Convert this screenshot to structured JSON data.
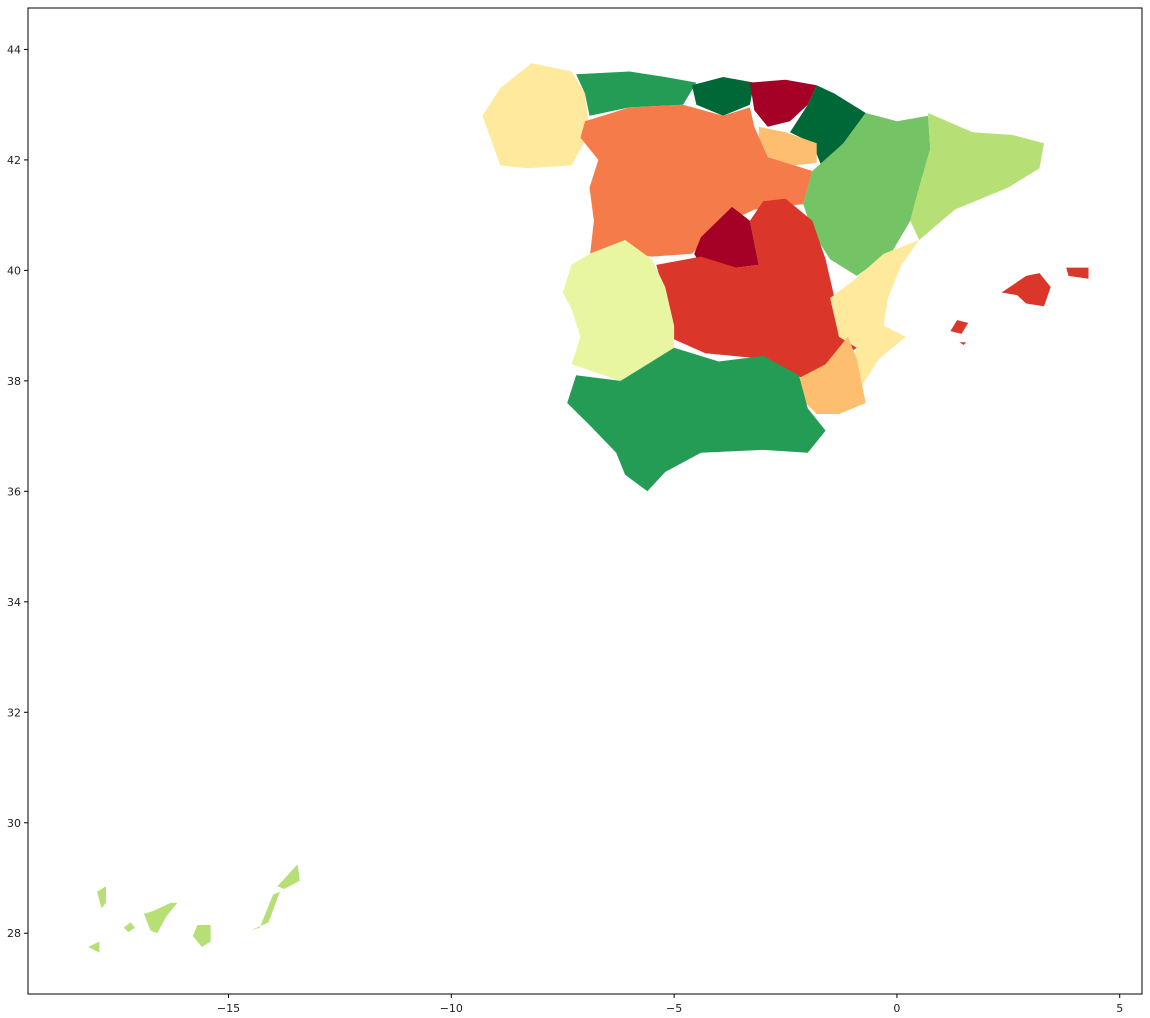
{
  "chart_data": {
    "type": "choropleth",
    "title": "",
    "xlabel": "",
    "ylabel": "",
    "xlim": [
      -19.5,
      5.5
    ],
    "ylim": [
      26.9,
      44.75
    ],
    "x_ticks": [
      -15,
      -10,
      -5,
      0,
      5
    ],
    "y_ticks": [
      28,
      30,
      32,
      34,
      36,
      38,
      40,
      42,
      44
    ],
    "x_tick_labels": [
      "−15",
      "−10",
      "−5",
      "0",
      "5"
    ],
    "y_tick_labels": [
      "28",
      "30",
      "32",
      "34",
      "36",
      "38",
      "40",
      "42",
      "44"
    ],
    "colormap": "RdYlGn",
    "grid": false,
    "legend": "none",
    "regions": [
      {
        "id": "galicia",
        "color": "#fee99d",
        "outline": [
          [
            -8.9,
            43.3
          ],
          [
            -8.2,
            43.75
          ],
          [
            -7.3,
            43.6
          ],
          [
            -7.0,
            43.2
          ],
          [
            -6.9,
            42.5
          ],
          [
            -7.3,
            41.9
          ],
          [
            -8.3,
            41.85
          ],
          [
            -8.9,
            41.9
          ],
          [
            -9.3,
            42.8
          ]
        ]
      },
      {
        "id": "asturias",
        "color": "#249c55",
        "outline": [
          [
            -7.2,
            43.55
          ],
          [
            -6.0,
            43.6
          ],
          [
            -5.2,
            43.5
          ],
          [
            -4.5,
            43.4
          ],
          [
            -4.8,
            43.0
          ],
          [
            -6.0,
            42.95
          ],
          [
            -6.9,
            42.8
          ],
          [
            -7.0,
            43.2
          ]
        ]
      },
      {
        "id": "cantabria",
        "color": "#006837",
        "outline": [
          [
            -4.6,
            43.35
          ],
          [
            -3.9,
            43.5
          ],
          [
            -3.2,
            43.4
          ],
          [
            -3.3,
            43.0
          ],
          [
            -3.9,
            42.8
          ],
          [
            -4.5,
            43.0
          ]
        ]
      },
      {
        "id": "basque-country",
        "color": "#a50026",
        "outline": [
          [
            -3.3,
            43.4
          ],
          [
            -2.5,
            43.45
          ],
          [
            -1.8,
            43.35
          ],
          [
            -2.0,
            43.0
          ],
          [
            -2.4,
            42.7
          ],
          [
            -2.9,
            42.6
          ],
          [
            -3.2,
            42.9
          ]
        ]
      },
      {
        "id": "navarre",
        "color": "#006837",
        "outline": [
          [
            -1.8,
            43.35
          ],
          [
            -1.4,
            43.2
          ],
          [
            -0.7,
            42.85
          ],
          [
            -1.2,
            42.3
          ],
          [
            -1.7,
            41.9
          ],
          [
            -1.9,
            42.3
          ],
          [
            -2.4,
            42.5
          ],
          [
            -2.0,
            43.0
          ]
        ]
      },
      {
        "id": "la-rioja",
        "color": "#fdbf6f",
        "outline": [
          [
            -3.1,
            42.6
          ],
          [
            -2.5,
            42.5
          ],
          [
            -1.8,
            42.3
          ],
          [
            -1.8,
            41.95
          ],
          [
            -2.3,
            41.9
          ],
          [
            -2.9,
            42.05
          ],
          [
            -3.1,
            42.3
          ]
        ]
      },
      {
        "id": "castile-and-leon",
        "color": "#f67b4a",
        "outline": [
          [
            -7.0,
            42.7
          ],
          [
            -6.0,
            42.95
          ],
          [
            -4.8,
            43.0
          ],
          [
            -3.9,
            42.8
          ],
          [
            -3.3,
            42.95
          ],
          [
            -3.2,
            42.6
          ],
          [
            -2.9,
            42.05
          ],
          [
            -2.3,
            41.9
          ],
          [
            -1.9,
            41.8
          ],
          [
            -2.1,
            41.2
          ],
          [
            -3.2,
            41.1
          ],
          [
            -4.0,
            40.8
          ],
          [
            -4.6,
            40.3
          ],
          [
            -5.5,
            40.25
          ],
          [
            -6.4,
            40.3
          ],
          [
            -6.9,
            40.2
          ],
          [
            -6.8,
            40.9
          ],
          [
            -6.9,
            41.5
          ],
          [
            -6.7,
            42.0
          ],
          [
            -7.1,
            42.4
          ]
        ]
      },
      {
        "id": "aragon",
        "color": "#74c365",
        "outline": [
          [
            -0.7,
            42.85
          ],
          [
            0.0,
            42.7
          ],
          [
            0.7,
            42.8
          ],
          [
            0.75,
            42.2
          ],
          [
            0.5,
            41.5
          ],
          [
            0.3,
            40.9
          ],
          [
            -0.1,
            40.35
          ],
          [
            -0.9,
            39.9
          ],
          [
            -1.5,
            40.2
          ],
          [
            -1.9,
            40.7
          ],
          [
            -2.1,
            41.2
          ],
          [
            -1.9,
            41.8
          ],
          [
            -1.2,
            42.3
          ]
        ]
      },
      {
        "id": "catalonia",
        "color": "#b6e076",
        "outline": [
          [
            0.7,
            42.85
          ],
          [
            1.7,
            42.5
          ],
          [
            2.6,
            42.45
          ],
          [
            3.3,
            42.3
          ],
          [
            3.2,
            41.85
          ],
          [
            2.5,
            41.5
          ],
          [
            1.3,
            41.1
          ],
          [
            0.5,
            40.55
          ],
          [
            0.3,
            40.9
          ],
          [
            0.5,
            41.5
          ],
          [
            0.75,
            42.2
          ]
        ]
      },
      {
        "id": "madrid",
        "color": "#a50026",
        "outline": [
          [
            -4.4,
            40.6
          ],
          [
            -3.7,
            41.15
          ],
          [
            -3.3,
            40.9
          ],
          [
            -3.1,
            40.1
          ],
          [
            -3.6,
            40.05
          ],
          [
            -4.3,
            39.95
          ],
          [
            -4.55,
            40.3
          ]
        ]
      },
      {
        "id": "castilla-la-mancha",
        "color": "#da362a",
        "outline": [
          [
            -5.4,
            40.1
          ],
          [
            -4.4,
            40.25
          ],
          [
            -3.6,
            40.05
          ],
          [
            -3.1,
            40.1
          ],
          [
            -3.3,
            40.9
          ],
          [
            -3.0,
            41.25
          ],
          [
            -2.5,
            41.3
          ],
          [
            -1.9,
            40.9
          ],
          [
            -1.6,
            40.2
          ],
          [
            -1.4,
            39.5
          ],
          [
            -1.3,
            38.8
          ],
          [
            -0.9,
            38.6
          ],
          [
            -1.6,
            38.2
          ],
          [
            -2.0,
            38.0
          ],
          [
            -3.0,
            38.4
          ],
          [
            -4.3,
            38.5
          ],
          [
            -5.0,
            38.75
          ],
          [
            -5.2,
            39.4
          ],
          [
            -5.3,
            39.8
          ]
        ]
      },
      {
        "id": "extremadura",
        "color": "#e9f6a1",
        "outline": [
          [
            -7.5,
            39.6
          ],
          [
            -7.3,
            40.1
          ],
          [
            -6.9,
            40.3
          ],
          [
            -6.1,
            40.55
          ],
          [
            -5.5,
            40.2
          ],
          [
            -5.2,
            39.7
          ],
          [
            -5.0,
            39.0
          ],
          [
            -5.0,
            38.5
          ],
          [
            -6.2,
            38.0
          ],
          [
            -7.3,
            38.3
          ],
          [
            -7.1,
            38.8
          ],
          [
            -7.3,
            39.3
          ]
        ]
      },
      {
        "id": "valencia",
        "color": "#fee99d",
        "outline": [
          [
            0.5,
            40.55
          ],
          [
            0.1,
            40.1
          ],
          [
            -0.2,
            39.5
          ],
          [
            -0.3,
            39.0
          ],
          [
            0.2,
            38.8
          ],
          [
            -0.4,
            38.4
          ],
          [
            -0.8,
            37.9
          ],
          [
            -1.1,
            38.1
          ],
          [
            -0.9,
            38.6
          ],
          [
            -1.3,
            38.8
          ],
          [
            -1.5,
            39.5
          ],
          [
            -1.0,
            39.8
          ],
          [
            -0.3,
            40.3
          ]
        ]
      },
      {
        "id": "murcia",
        "color": "#fdbf6f",
        "outline": [
          [
            -2.2,
            38.05
          ],
          [
            -1.6,
            38.3
          ],
          [
            -1.1,
            38.8
          ],
          [
            -0.9,
            38.4
          ],
          [
            -0.7,
            37.6
          ],
          [
            -1.3,
            37.4
          ],
          [
            -1.8,
            37.4
          ],
          [
            -2.3,
            37.8
          ]
        ]
      },
      {
        "id": "andalusia",
        "color": "#249c55",
        "outline": [
          [
            -7.4,
            37.6
          ],
          [
            -7.2,
            38.1
          ],
          [
            -6.2,
            38.0
          ],
          [
            -5.0,
            38.6
          ],
          [
            -4.0,
            38.35
          ],
          [
            -3.0,
            38.45
          ],
          [
            -2.2,
            38.1
          ],
          [
            -2.0,
            37.5
          ],
          [
            -1.6,
            37.1
          ],
          [
            -2.0,
            36.7
          ],
          [
            -3.0,
            36.75
          ],
          [
            -4.4,
            36.7
          ],
          [
            -5.2,
            36.35
          ],
          [
            -5.6,
            36.0
          ],
          [
            -6.1,
            36.3
          ],
          [
            -6.3,
            36.7
          ],
          [
            -6.9,
            37.2
          ]
        ]
      },
      {
        "id": "mallorca",
        "color": "#da362a",
        "outline": [
          [
            2.35,
            39.6
          ],
          [
            2.9,
            39.9
          ],
          [
            3.2,
            39.95
          ],
          [
            3.45,
            39.7
          ],
          [
            3.3,
            39.35
          ],
          [
            2.9,
            39.4
          ],
          [
            2.7,
            39.55
          ]
        ]
      },
      {
        "id": "menorca",
        "color": "#da362a",
        "outline": [
          [
            3.8,
            40.05
          ],
          [
            4.3,
            40.05
          ],
          [
            4.3,
            39.85
          ],
          [
            3.85,
            39.9
          ]
        ]
      },
      {
        "id": "ibiza",
        "color": "#da362a",
        "outline": [
          [
            1.2,
            38.9
          ],
          [
            1.35,
            39.1
          ],
          [
            1.6,
            39.05
          ],
          [
            1.45,
            38.85
          ]
        ]
      },
      {
        "id": "formentera",
        "color": "#da362a",
        "outline": [
          [
            1.4,
            38.7
          ],
          [
            1.55,
            38.7
          ],
          [
            1.5,
            38.65
          ]
        ]
      },
      {
        "id": "lanzarote",
        "color": "#b6e076",
        "outline": [
          [
            -13.9,
            28.85
          ],
          [
            -13.45,
            29.25
          ],
          [
            -13.4,
            28.95
          ],
          [
            -13.75,
            28.8
          ]
        ]
      },
      {
        "id": "fuerteventura",
        "color": "#b6e076",
        "outline": [
          [
            -14.5,
            28.05
          ],
          [
            -14.1,
            28.2
          ],
          [
            -13.85,
            28.75
          ],
          [
            -14.0,
            28.7
          ],
          [
            -14.3,
            28.1
          ]
        ]
      },
      {
        "id": "gran-canaria",
        "color": "#b6e076",
        "outline": [
          [
            -15.8,
            27.95
          ],
          [
            -15.7,
            28.15
          ],
          [
            -15.4,
            28.15
          ],
          [
            -15.4,
            27.85
          ],
          [
            -15.6,
            27.75
          ]
        ]
      },
      {
        "id": "tenerife",
        "color": "#b6e076",
        "outline": [
          [
            -16.9,
            28.35
          ],
          [
            -16.7,
            28.4
          ],
          [
            -16.3,
            28.55
          ],
          [
            -16.15,
            28.55
          ],
          [
            -16.4,
            28.3
          ],
          [
            -16.6,
            28.0
          ],
          [
            -16.75,
            28.05
          ]
        ]
      },
      {
        "id": "la-gomera",
        "color": "#b6e076",
        "outline": [
          [
            -17.35,
            28.1
          ],
          [
            -17.2,
            28.2
          ],
          [
            -17.1,
            28.1
          ],
          [
            -17.25,
            28.02
          ]
        ]
      },
      {
        "id": "la-palma",
        "color": "#b6e076",
        "outline": [
          [
            -17.95,
            28.75
          ],
          [
            -17.75,
            28.85
          ],
          [
            -17.75,
            28.55
          ],
          [
            -17.85,
            28.45
          ]
        ]
      },
      {
        "id": "el-hierro",
        "color": "#b6e076",
        "outline": [
          [
            -18.15,
            27.75
          ],
          [
            -17.9,
            27.85
          ],
          [
            -17.9,
            27.65
          ]
        ]
      }
    ]
  }
}
